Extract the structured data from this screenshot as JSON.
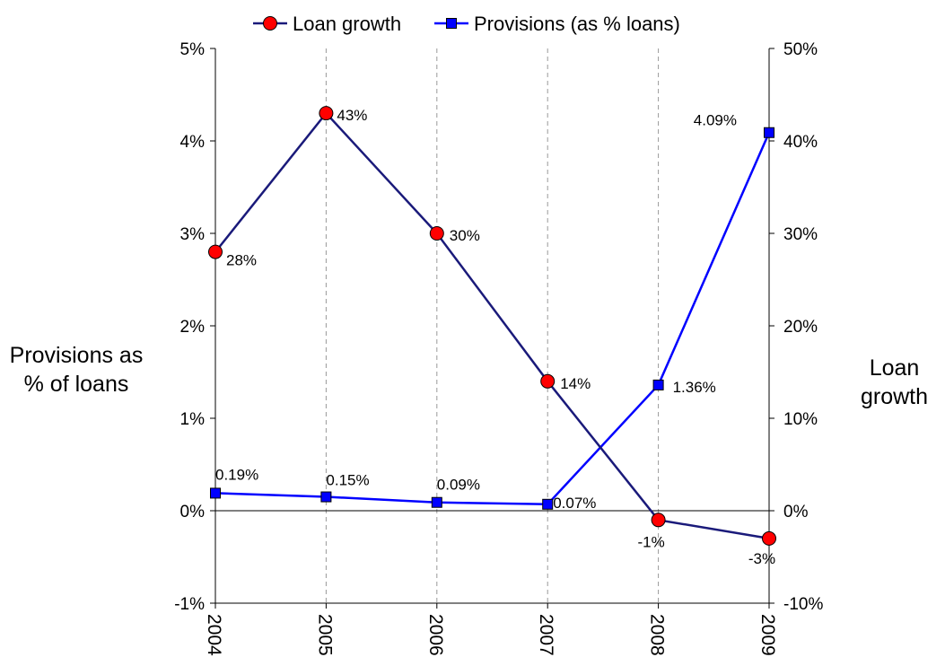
{
  "chart_data": {
    "type": "line",
    "title": "",
    "categories": [
      "2004",
      "2005",
      "2006",
      "2007",
      "2008",
      "2009"
    ],
    "legend_position": "top",
    "grid": "vertical-dashed",
    "series": [
      {
        "name": "Loan growth",
        "axis": "right",
        "color": "#1a1a7a",
        "marker": "circle",
        "marker_color": "#ff0000",
        "values": [
          28,
          43,
          30,
          14,
          -1,
          -3
        ],
        "labels": [
          "28%",
          "43%",
          "30%",
          "14%",
          "-1%",
          "-3%"
        ]
      },
      {
        "name": "Provisions (as % loans)",
        "axis": "left",
        "color": "#0000ff",
        "marker": "square",
        "values": [
          0.19,
          0.15,
          0.09,
          0.07,
          1.36,
          4.09
        ],
        "labels": [
          "0.19%",
          "0.15%",
          "0.09%",
          "0.07%",
          "1.36%",
          "4.09%"
        ]
      }
    ],
    "y_left": {
      "label": "Provisions as % of loans",
      "ylim": [
        -1,
        5
      ],
      "ticks": [
        5,
        4,
        3,
        2,
        1,
        0,
        -1
      ],
      "tick_labels": [
        "5%",
        "4%",
        "3%",
        "2%",
        "1%",
        "0%",
        "-1%"
      ]
    },
    "y_right": {
      "label": "Loan growth",
      "ylim": [
        -10,
        50
      ],
      "ticks": [
        50,
        40,
        30,
        20,
        10,
        0,
        -10
      ],
      "tick_labels": [
        "50%",
        "40%",
        "30%",
        "20%",
        "10%",
        "0%",
        "-10%"
      ]
    }
  }
}
